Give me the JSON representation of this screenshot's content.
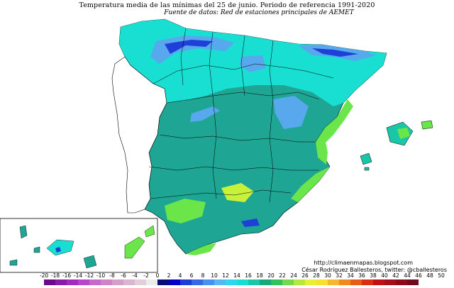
{
  "title": "Temperatura media de las mínimas del 25 de junio. Periodo de referencia 1991-2020",
  "subtitle": "Fuente de datos: Red de estaciones principales de AEMET",
  "credits": {
    "url": "http://climaenmapas.blogspot.com",
    "author": "César Rodríguez Ballesteros, twitter: @cballesteros"
  },
  "legend": {
    "ticks": [
      "-20",
      "-18",
      "-16",
      "-14",
      "-12",
      "-10",
      "-8",
      "-6",
      "-4",
      "-2",
      "0",
      "2",
      "4",
      "6",
      "8",
      "10",
      "12",
      "14",
      "16",
      "18",
      "20",
      "22",
      "24",
      "26",
      "28",
      "30",
      "32",
      "34",
      "36",
      "38",
      "40",
      "42",
      "44",
      "46",
      "48",
      "50"
    ],
    "colors": [
      "#6a0a8a",
      "#8a1aa8",
      "#a42bbf",
      "#b846c8",
      "#c56ac8",
      "#cc86c8",
      "#d59fc9",
      "#dab6d0",
      "#e2cfda",
      "#ececec",
      "#0a0a7a",
      "#0000c8",
      "#1f3bd8",
      "#3766e6",
      "#4a90ee",
      "#56b8f2",
      "#2fd6f0",
      "#18ddd0",
      "#19c6a8",
      "#15a878",
      "#2ec35c",
      "#76d84a",
      "#b7e83c",
      "#e6f03a",
      "#f7e031",
      "#f5b829",
      "#f08a1f",
      "#e85c18",
      "#d83012",
      "#c01214",
      "#a40f1a",
      "#8a0c1c",
      "#700a1e"
    ]
  },
  "map": {
    "colors": {
      "sea": "#ffffff",
      "base": "#1fa593",
      "north": "#19ded2",
      "mountain_light": "#57a8ec",
      "mountain_dark": "#1e3fd8",
      "warm": "#6ae64a",
      "hot": "#c8f23a",
      "coast": "#1fb8b0",
      "border": "#000000"
    }
  }
}
